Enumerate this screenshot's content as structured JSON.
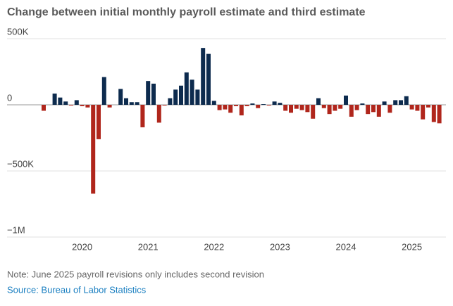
{
  "chart_data": {
    "type": "bar",
    "title": "Change between initial monthly payroll estimate and third estimate",
    "categories": [
      null,
      null,
      null,
      null,
      null,
      null,
      null,
      "2020",
      null,
      null,
      null,
      null,
      null,
      null,
      null,
      null,
      null,
      null,
      null,
      "2021",
      null,
      null,
      null,
      null,
      null,
      null,
      null,
      null,
      null,
      null,
      null,
      "2022",
      null,
      null,
      null,
      null,
      null,
      null,
      null,
      null,
      null,
      null,
      null,
      "2023",
      null,
      null,
      null,
      null,
      null,
      null,
      null,
      null,
      null,
      null,
      null,
      "2024",
      null,
      null,
      null,
      null,
      null,
      null,
      null,
      null,
      null,
      null,
      null,
      "2025",
      null,
      null,
      null,
      null,
      null
    ],
    "values": [
      -45000,
      0,
      85000,
      55000,
      25000,
      -5000,
      35000,
      -10000,
      -20000,
      -672000,
      -260000,
      210000,
      -20000,
      0,
      120000,
      50000,
      20000,
      20000,
      -170000,
      180000,
      160000,
      -135000,
      -5000,
      50000,
      115000,
      145000,
      245000,
      190000,
      115000,
      430000,
      385000,
      30000,
      -40000,
      -35000,
      -60000,
      -10000,
      -80000,
      -10000,
      10000,
      -25000,
      5000,
      -5000,
      25000,
      15000,
      -45000,
      -60000,
      -30000,
      -40000,
      -55000,
      -105000,
      50000,
      -25000,
      -70000,
      -45000,
      -30000,
      70000,
      -90000,
      -40000,
      10000,
      -70000,
      -55000,
      -90000,
      25000,
      -60000,
      35000,
      35000,
      65000,
      -35000,
      -45000,
      -110000,
      -20000,
      -130000,
      -140000
    ],
    "positive_color": "#0d2b4e",
    "negative_color": "#b0261c",
    "ylim": [
      -1000000,
      500000
    ],
    "yticks": [
      {
        "value": 500000,
        "label": "500K"
      },
      0,
      {
        "value": -500000,
        "label": "−500K"
      },
      {
        "value": -1000000,
        "label": "−1M"
      }
    ],
    "grid": true,
    "note": "Note: June 2025 payroll revisions only includes second revision",
    "source": "Source: Bureau of Labor Statistics"
  }
}
